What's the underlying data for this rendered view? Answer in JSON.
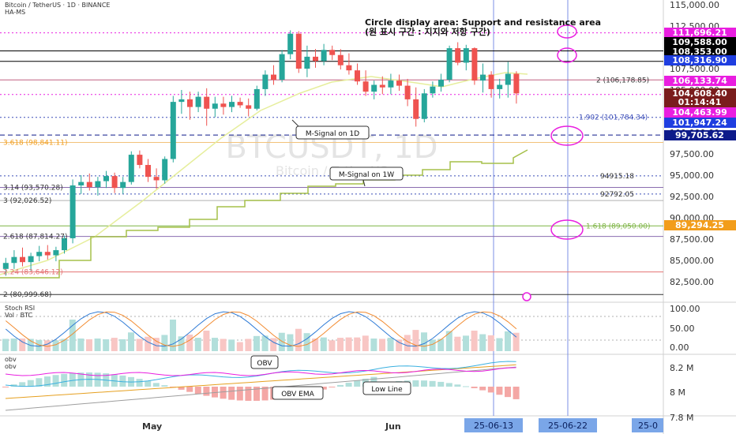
{
  "header": {
    "symbol_line": "Bitcoin / TetherUS · 1D · BINANCE",
    "indicator_line": "HA-MS"
  },
  "watermark": {
    "main": "BTCUSDT, 1D",
    "sub": "Bitcoin / TetherUS"
  },
  "annotation": {
    "line1": "Circle display area: Support and resistance area",
    "line2": "(원 표시 구간 : 지지와 저항 구간)"
  },
  "price_axis_ticks": [
    "115,000.00",
    "112,500.00",
    "110,000.00",
    "107,500.00",
    "105,000.00",
    "102,500.00",
    "100,000.00",
    "97,500.00",
    "95,000.00",
    "92,500.00",
    "90,000.00",
    "87,500.00",
    "85,000.00",
    "82,500.00"
  ],
  "price_tags": [
    {
      "text": "111,696.21",
      "bg": "#e91ee0"
    },
    {
      "text": "109,588.00",
      "bg": "#000000"
    },
    {
      "text": "108,353.00",
      "bg": "#000000"
    },
    {
      "text": "108,316.90",
      "bg": "#1f3ee0"
    },
    {
      "text": "106,133.74",
      "bg": "#e91ee0"
    },
    {
      "text": "104,608.40",
      "bg": "#7a1d1d"
    },
    {
      "text": "01:14:41",
      "bg": "#7a1d1d"
    },
    {
      "text": "104,463.99",
      "bg": "#e91ee0"
    },
    {
      "text": "101,947.24",
      "bg": "#1f3ee0"
    },
    {
      "text": "99,705.62",
      "bg": "#0d1a8a"
    },
    {
      "text": "89,294.25",
      "bg": "#f29d1b"
    }
  ],
  "fib_labels": [
    {
      "text": "2 (106,178.85)",
      "color": "#333333"
    },
    {
      "text": "1.902 (101,784.34)",
      "color": "#3b4db8"
    },
    {
      "text": "3.618 (98,841.11)",
      "color": "#f29d1b"
    },
    {
      "text": "94915.18",
      "color": "#333333"
    },
    {
      "text": "3.14 (93,570.28)",
      "color": "#333333"
    },
    {
      "text": "3 (92,026.52)",
      "color": "#333333"
    },
    {
      "text": "92792.05",
      "color": "#333333"
    },
    {
      "text": "1.618 (89,050.00)",
      "color": "#7cb342"
    },
    {
      "text": "2.618 (87,814.27)",
      "color": "#333333"
    },
    {
      "text": "2.24 (83,646.12)",
      "color": "#e57373"
    },
    {
      "text": "2 (80,999.68)",
      "color": "#333333"
    }
  ],
  "callouts": {
    "m_signal_1d": "M-Signal on 1D",
    "m_signal_1w": "M-Signal on 1W",
    "obv": "OBV",
    "obv_ema": "OBV EMA",
    "low_line": "Low Line"
  },
  "stoch_panel": {
    "title": "Stoch RSI",
    "vol": "Vol · BTC",
    "ticks": [
      "100.00",
      "50.00",
      "0.00"
    ]
  },
  "obv_panel": {
    "title1": "obv",
    "title2": "obv",
    "ticks": [
      "8.2 M",
      "8 M",
      "7.8 M"
    ]
  },
  "x_axis": {
    "labels": [
      "May",
      "Jun"
    ],
    "date_tags": [
      "25-06-13",
      "25-06-22",
      "25-0"
    ]
  },
  "colors": {
    "up": "#26a69a",
    "down": "#ef5350",
    "m_signal_1d": "#e6ee9c",
    "m_signal_1w": "#a5c04a",
    "accent": "#e91ee0"
  },
  "chart_data": {
    "type": "candlestick",
    "y_range": [
      80000,
      115000
    ],
    "candles": [
      {
        "o": 84000,
        "h": 85300,
        "l": 83200,
        "c": 84700
      },
      {
        "o": 84700,
        "h": 86200,
        "l": 84000,
        "c": 85400
      },
      {
        "o": 85400,
        "h": 86500,
        "l": 84300,
        "c": 84800
      },
      {
        "o": 84800,
        "h": 85900,
        "l": 83800,
        "c": 85500
      },
      {
        "o": 85500,
        "h": 86700,
        "l": 84900,
        "c": 86000
      },
      {
        "o": 86000,
        "h": 86800,
        "l": 85100,
        "c": 85600
      },
      {
        "o": 85600,
        "h": 86600,
        "l": 84900,
        "c": 86200
      },
      {
        "o": 86200,
        "h": 87900,
        "l": 85800,
        "c": 87600
      },
      {
        "o": 87600,
        "h": 94500,
        "l": 87000,
        "c": 93800
      },
      {
        "o": 93800,
        "h": 95000,
        "l": 92800,
        "c": 94200
      },
      {
        "o": 94200,
        "h": 95200,
        "l": 93200,
        "c": 93600
      },
      {
        "o": 93600,
        "h": 94800,
        "l": 92600,
        "c": 94300
      },
      {
        "o": 94300,
        "h": 95500,
        "l": 93500,
        "c": 94900
      },
      {
        "o": 94900,
        "h": 95300,
        "l": 92900,
        "c": 93500
      },
      {
        "o": 93500,
        "h": 94800,
        "l": 92800,
        "c": 94200
      },
      {
        "o": 94200,
        "h": 97800,
        "l": 93900,
        "c": 97400
      },
      {
        "o": 97400,
        "h": 97900,
        "l": 95800,
        "c": 96200
      },
      {
        "o": 96200,
        "h": 96900,
        "l": 94200,
        "c": 94800
      },
      {
        "o": 94800,
        "h": 95800,
        "l": 93400,
        "c": 94400
      },
      {
        "o": 94400,
        "h": 97200,
        "l": 94000,
        "c": 96900
      },
      {
        "o": 96900,
        "h": 104300,
        "l": 96500,
        "c": 103600
      },
      {
        "o": 103600,
        "h": 105000,
        "l": 102200,
        "c": 103900
      },
      {
        "o": 103900,
        "h": 104800,
        "l": 101500,
        "c": 103000
      },
      {
        "o": 103000,
        "h": 104800,
        "l": 102400,
        "c": 104200
      },
      {
        "o": 104200,
        "h": 105200,
        "l": 100800,
        "c": 102800
      },
      {
        "o": 102800,
        "h": 104200,
        "l": 101800,
        "c": 103400
      },
      {
        "o": 103400,
        "h": 104200,
        "l": 102100,
        "c": 103000
      },
      {
        "o": 103000,
        "h": 104300,
        "l": 102400,
        "c": 103600
      },
      {
        "o": 103600,
        "h": 104100,
        "l": 102900,
        "c": 103200
      },
      {
        "o": 103200,
        "h": 104000,
        "l": 101900,
        "c": 102800
      },
      {
        "o": 102800,
        "h": 105500,
        "l": 102600,
        "c": 105100
      },
      {
        "o": 105100,
        "h": 107300,
        "l": 104300,
        "c": 106800
      },
      {
        "o": 106800,
        "h": 107900,
        "l": 105600,
        "c": 106200
      },
      {
        "o": 106200,
        "h": 109700,
        "l": 105900,
        "c": 109200
      },
      {
        "o": 109200,
        "h": 112000,
        "l": 108600,
        "c": 111600
      },
      {
        "o": 111600,
        "h": 111900,
        "l": 107000,
        "c": 107500
      },
      {
        "o": 107500,
        "h": 110200,
        "l": 106500,
        "c": 108900
      },
      {
        "o": 108900,
        "h": 109800,
        "l": 107600,
        "c": 108400
      },
      {
        "o": 108400,
        "h": 110400,
        "l": 107900,
        "c": 109700
      },
      {
        "o": 109700,
        "h": 110200,
        "l": 108500,
        "c": 109100
      },
      {
        "o": 109100,
        "h": 109800,
        "l": 107400,
        "c": 107900
      },
      {
        "o": 107900,
        "h": 109300,
        "l": 106800,
        "c": 107300
      },
      {
        "o": 107300,
        "h": 108100,
        "l": 105600,
        "c": 106000
      },
      {
        "o": 106000,
        "h": 107300,
        "l": 104300,
        "c": 104800
      },
      {
        "o": 104800,
        "h": 106100,
        "l": 103900,
        "c": 105600
      },
      {
        "o": 105600,
        "h": 106600,
        "l": 104500,
        "c": 105300
      },
      {
        "o": 105300,
        "h": 106900,
        "l": 104500,
        "c": 106100
      },
      {
        "o": 106100,
        "h": 106800,
        "l": 104900,
        "c": 105500
      },
      {
        "o": 105500,
        "h": 106300,
        "l": 103100,
        "c": 103900
      },
      {
        "o": 103900,
        "h": 105300,
        "l": 100700,
        "c": 101600
      },
      {
        "o": 101600,
        "h": 105100,
        "l": 101200,
        "c": 104600
      },
      {
        "o": 104600,
        "h": 106000,
        "l": 104100,
        "c": 105400
      },
      {
        "o": 105400,
        "h": 106900,
        "l": 104800,
        "c": 106200
      },
      {
        "o": 106200,
        "h": 110200,
        "l": 105900,
        "c": 109900
      },
      {
        "o": 109900,
        "h": 110600,
        "l": 107900,
        "c": 108200
      },
      {
        "o": 108200,
        "h": 110300,
        "l": 107300,
        "c": 109900
      },
      {
        "o": 109900,
        "h": 110000,
        "l": 105600,
        "c": 106100
      },
      {
        "o": 106100,
        "h": 108100,
        "l": 104700,
        "c": 106800
      },
      {
        "o": 106800,
        "h": 107200,
        "l": 104100,
        "c": 105100
      },
      {
        "o": 105100,
        "h": 106300,
        "l": 104000,
        "c": 105600
      },
      {
        "o": 105600,
        "h": 108300,
        "l": 104100,
        "c": 106900
      },
      {
        "o": 106900,
        "h": 107200,
        "l": 103400,
        "c": 104600
      }
    ]
  }
}
